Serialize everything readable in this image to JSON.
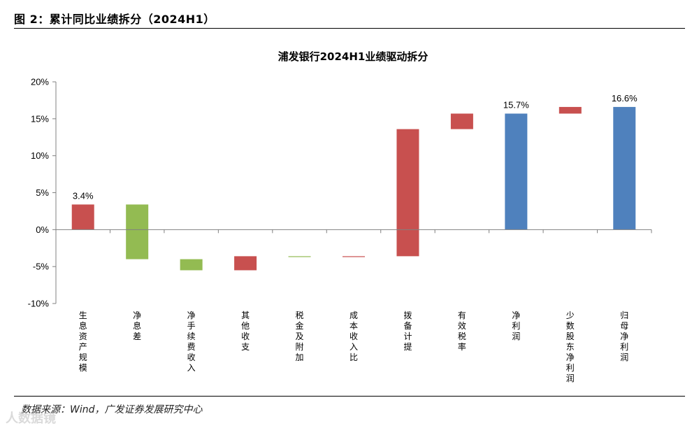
{
  "figure": {
    "header": "图 2：累计同比业绩拆分（2024H1）",
    "source": "数据来源：Wind，广发证券发展研究中心",
    "watermark": "人数据镜"
  },
  "colors": {
    "positive": "#C8504F",
    "negative": "#93BB52",
    "total": "#4F81BD",
    "axis": "#808080"
  },
  "chart_data": {
    "type": "bar",
    "subtype": "waterfall",
    "title": "浦发银行2024H1业绩驱动拆分",
    "ylim": [
      -10,
      20
    ],
    "yticks": [
      {
        "value": 20,
        "label": "20%"
      },
      {
        "value": 15,
        "label": "15%"
      },
      {
        "value": 10,
        "label": "10%"
      },
      {
        "value": 5,
        "label": "5%"
      },
      {
        "value": 0,
        "label": "0%"
      },
      {
        "value": -5,
        "label": "-5%"
      },
      {
        "value": -10,
        "label": "-10%"
      }
    ],
    "grid": false,
    "bars": [
      {
        "category": "生息资产规模",
        "start": 0,
        "end": 3.4,
        "kind": "positive",
        "label": "3.4%"
      },
      {
        "category": "净息差",
        "start": 3.4,
        "end": -4.0,
        "kind": "negative",
        "label": ""
      },
      {
        "category": "净手续费收入",
        "start": -4.0,
        "end": -5.5,
        "kind": "negative",
        "label": ""
      },
      {
        "category": "其他收支",
        "start": -5.5,
        "end": -3.6,
        "kind": "positive",
        "label": ""
      },
      {
        "category": "税金及附加",
        "start": -3.6,
        "end": -3.7,
        "kind": "negative",
        "label": ""
      },
      {
        "category": "成本收入比",
        "start": -3.7,
        "end": -3.6,
        "kind": "positive",
        "label": ""
      },
      {
        "category": "拨备计提",
        "start": -3.6,
        "end": 13.6,
        "kind": "positive",
        "label": ""
      },
      {
        "category": "有效税率",
        "start": 13.6,
        "end": 15.7,
        "kind": "positive",
        "label": ""
      },
      {
        "category": "净利润",
        "start": 0,
        "end": 15.7,
        "kind": "total",
        "label": "15.7%"
      },
      {
        "category": "少数股东净利润",
        "start": 15.7,
        "end": 16.6,
        "kind": "positive",
        "label": ""
      },
      {
        "category": "归母净利润",
        "start": 0,
        "end": 16.6,
        "kind": "total",
        "label": "16.6%"
      }
    ]
  }
}
